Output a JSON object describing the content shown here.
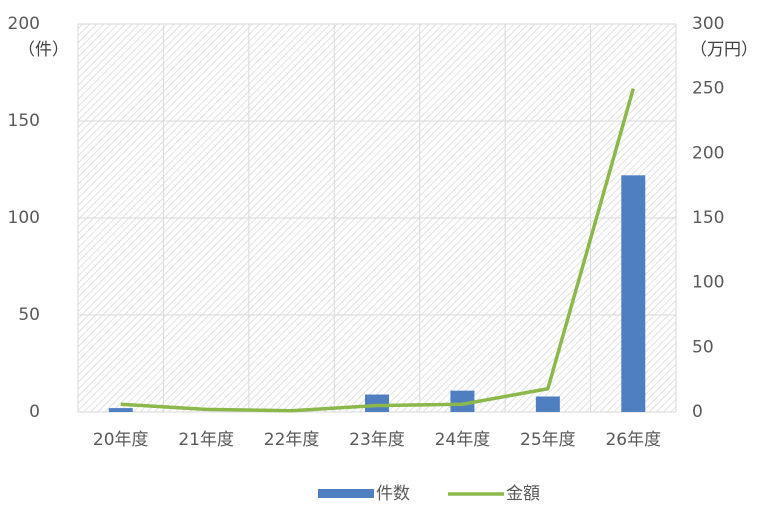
{
  "chart_data": {
    "type": "bar_line",
    "categories": [
      "20年度",
      "21年度",
      "22年度",
      "23年度",
      "24年度",
      "25年度",
      "26年度"
    ],
    "series": [
      {
        "name": "件数",
        "color": "#4f7ec1",
        "type": "bar",
        "values": [
          2,
          0,
          0,
          9,
          11,
          8,
          122
        ]
      },
      {
        "name": "金額",
        "color": "#8cb84b",
        "type": "line",
        "axis": "y2",
        "values": [
          6,
          2,
          1,
          5,
          6,
          18,
          250
        ]
      }
    ],
    "ylim": [
      0,
      200
    ],
    "yticks": [
      0,
      50,
      100,
      150,
      200
    ],
    "y_unit": "（件）",
    "y2lim": [
      0,
      300
    ],
    "y2ticks": [
      0,
      50,
      100,
      150,
      200,
      250,
      300
    ],
    "y2_unit": "（万円）",
    "grid": true,
    "legend": "bottom"
  }
}
